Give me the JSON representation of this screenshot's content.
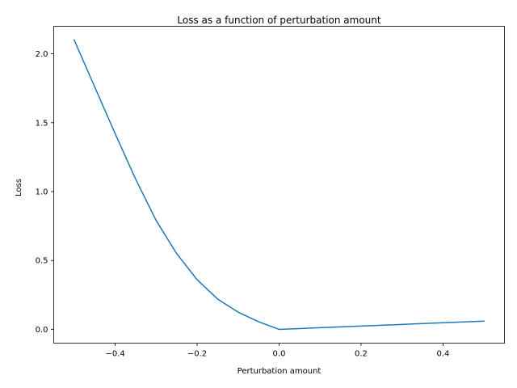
{
  "chart_data": {
    "type": "line",
    "title": "Loss as a function of perturbation amount",
    "xlabel": "Perturbation amount",
    "ylabel": "Loss",
    "xlim": [
      -0.55,
      0.55
    ],
    "ylim": [
      -0.1,
      2.2
    ],
    "xticks": [
      -0.4,
      -0.2,
      0.0,
      0.2,
      0.4
    ],
    "xtick_labels": [
      "−0.4",
      "−0.2",
      "0.0",
      "0.2",
      "0.4"
    ],
    "yticks": [
      0.0,
      0.5,
      1.0,
      1.5,
      2.0
    ],
    "ytick_labels": [
      "0.0",
      "0.5",
      "1.0",
      "1.5",
      "2.0"
    ],
    "grid": false,
    "line_color": "#1f77b4",
    "series": [
      {
        "x": [
          -0.5,
          -0.45,
          -0.4,
          -0.35,
          -0.3,
          -0.25,
          -0.2,
          -0.15,
          -0.1,
          -0.05,
          0.0,
          0.1,
          0.2,
          0.3,
          0.4,
          0.5
        ],
        "y": [
          2.1,
          1.76,
          1.42,
          1.09,
          0.79,
          0.55,
          0.36,
          0.22,
          0.125,
          0.055,
          0.0,
          0.012,
          0.024,
          0.036,
          0.048,
          0.06
        ]
      }
    ]
  }
}
